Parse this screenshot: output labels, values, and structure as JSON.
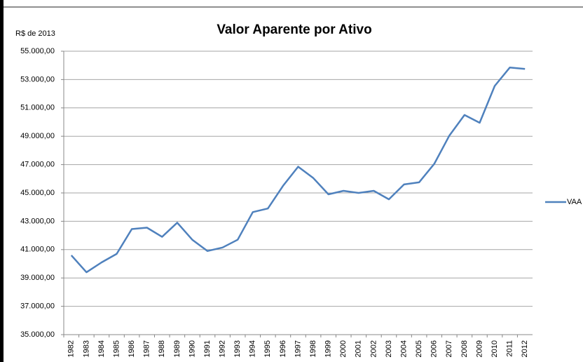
{
  "chart_data": {
    "type": "line",
    "title": "Valor Aparente por Ativo",
    "y_label": "R$ de 2013",
    "categories": [
      "1982",
      "1983",
      "1984",
      "1985",
      "1986",
      "1987",
      "1988",
      "1989",
      "1990",
      "1991",
      "1992",
      "1993",
      "1994",
      "1995",
      "1996",
      "1997",
      "1998",
      "1999",
      "2000",
      "2001",
      "2002",
      "2003",
      "2004",
      "2005",
      "2006",
      "2007",
      "2008",
      "2009",
      "2010",
      "2011",
      "2012"
    ],
    "series": [
      {
        "name": "VAA",
        "color": "#4f81bd",
        "values": [
          40600,
          39400,
          40100,
          40700,
          42450,
          42550,
          41900,
          42900,
          41700,
          40900,
          41150,
          41700,
          43650,
          43900,
          45500,
          46850,
          46050,
          44900,
          45150,
          45000,
          45150,
          44550,
          45600,
          45750,
          47050,
          49050,
          50500,
          49950,
          52550,
          53850,
          53750
        ]
      }
    ],
    "ylim": [
      35000,
      55000
    ],
    "yticks": [
      {
        "value": 35000,
        "label": "35.000,00"
      },
      {
        "value": 37000,
        "label": "37.000,00"
      },
      {
        "value": 39000,
        "label": "39.000,00"
      },
      {
        "value": 41000,
        "label": "41.000,00"
      },
      {
        "value": 43000,
        "label": "43.000,00"
      },
      {
        "value": 45000,
        "label": "45.000,00"
      },
      {
        "value": 47000,
        "label": "47.000,00"
      },
      {
        "value": 49000,
        "label": "49.000,00"
      },
      {
        "value": 51000,
        "label": "51.000,00"
      },
      {
        "value": 53000,
        "label": "53.000,00"
      },
      {
        "value": 55000,
        "label": "55.000,00"
      }
    ],
    "grid": true,
    "legend": "right"
  }
}
